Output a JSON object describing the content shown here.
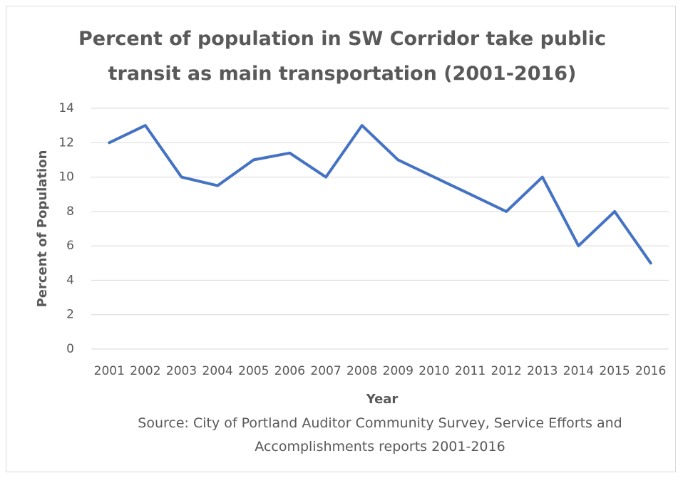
{
  "chart_data": {
    "type": "line",
    "title": "Percent of population in SW Corridor take public transit as main transportation (2001-2016)",
    "x_label": "Year",
    "y_label": "Percent of Population",
    "annotation": "Source: City of Portland Auditor Community Survey, Service Efforts and Accomplishments reports 2001-2016",
    "categories": [
      "2001",
      "2002",
      "2003",
      "2004",
      "2005",
      "2006",
      "2007",
      "2008",
      "2009",
      "2010",
      "2011",
      "2012",
      "2013",
      "2014",
      "2015",
      "2016"
    ],
    "series": [
      {
        "name": "Percent of Population",
        "color": "#4472c4",
        "values": [
          12,
          13,
          10,
          9.5,
          11,
          11.4,
          10,
          13,
          11,
          10,
          9,
          8,
          10,
          6,
          8,
          5
        ]
      }
    ],
    "ylim": [
      0,
      14
    ],
    "yticks": [
      0,
      2,
      4,
      6,
      8,
      10,
      12,
      14
    ],
    "grid": true
  }
}
